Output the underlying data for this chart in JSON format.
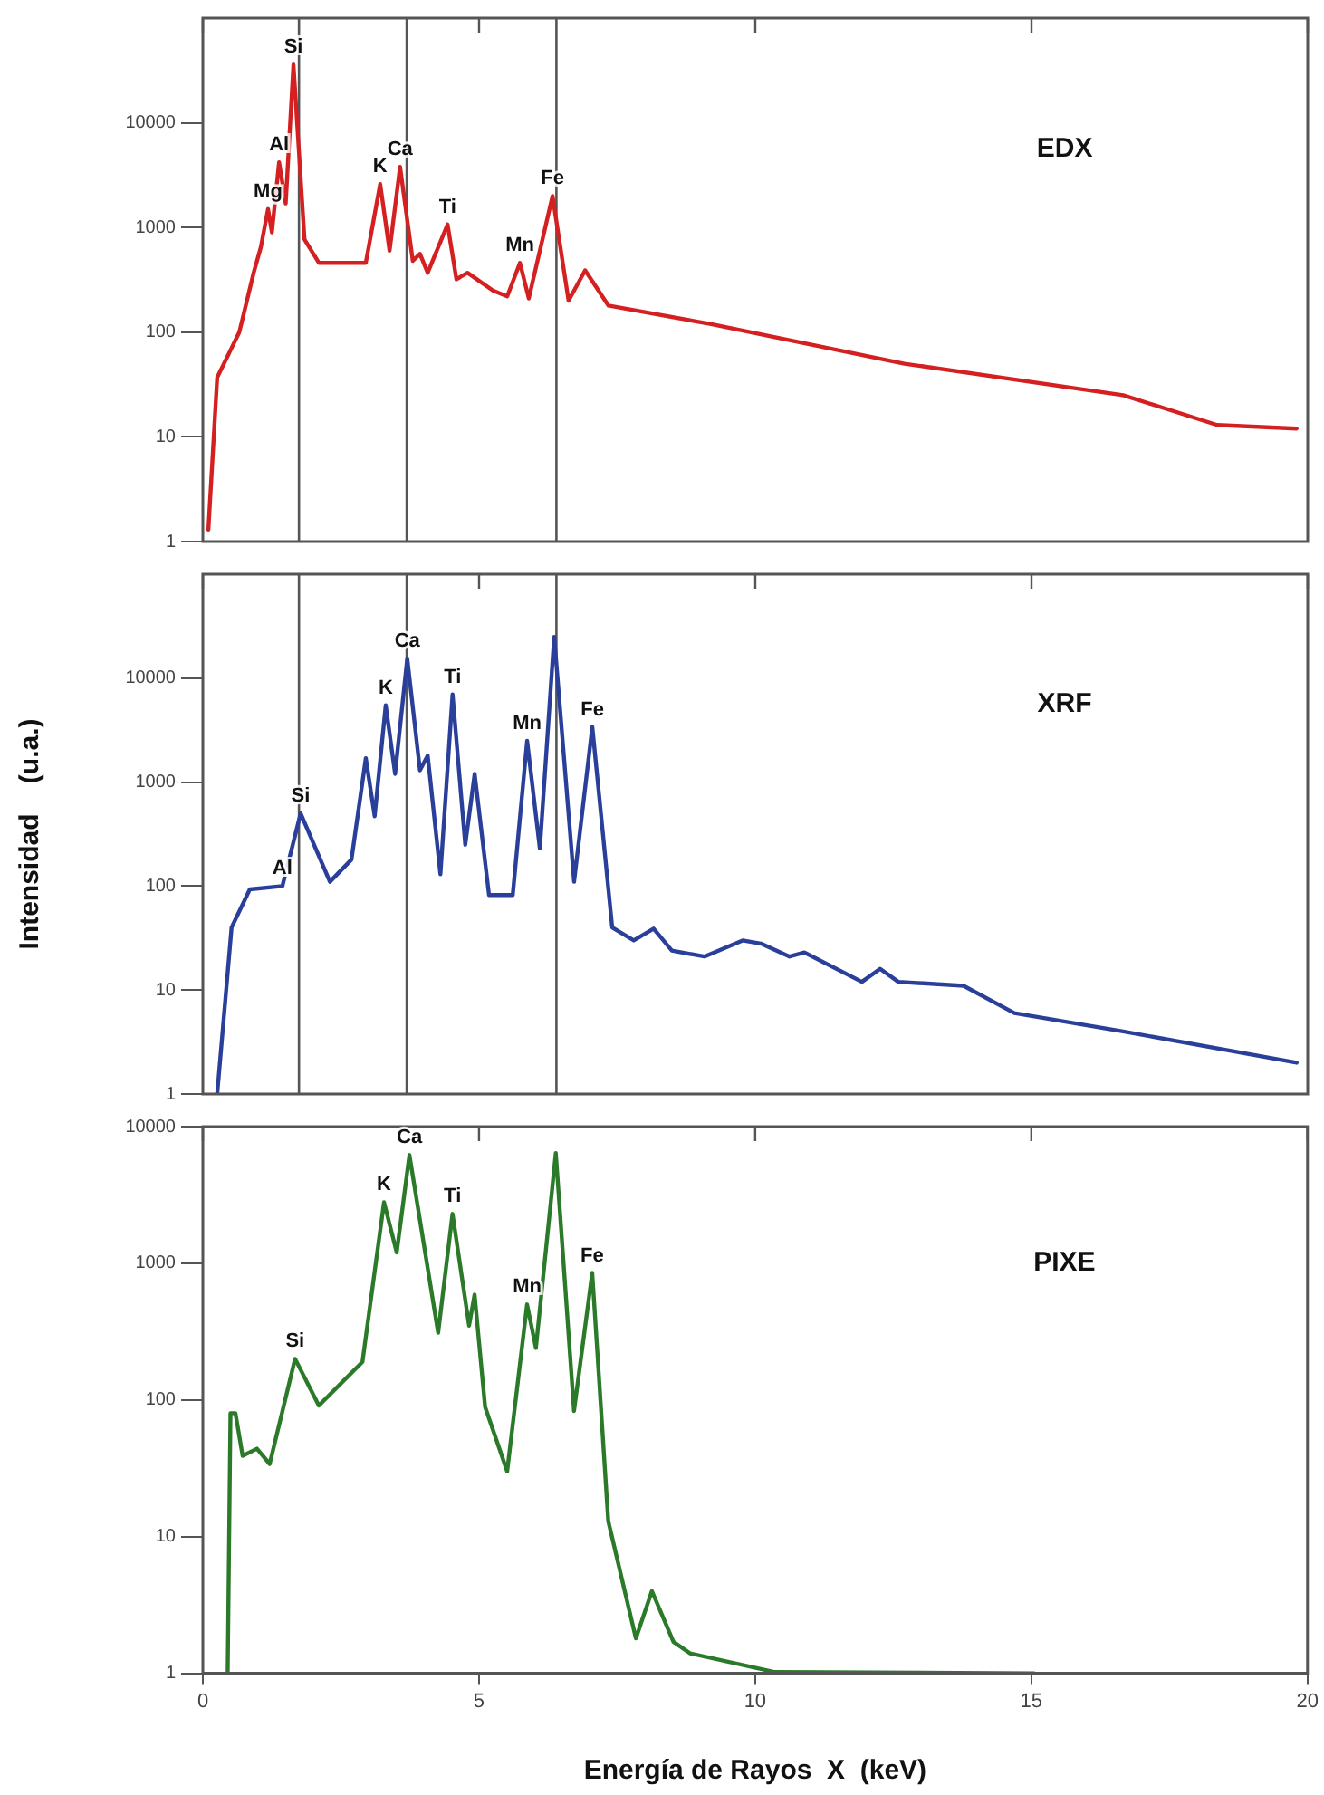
{
  "chart_data": [
    {
      "type": "line",
      "title": "EDX",
      "tick_labels": "y",
      "log": "y",
      "grid": false,
      "legend": false,
      "xlim": [
        0,
        20
      ],
      "xticks": [
        0,
        5,
        10,
        15,
        20
      ],
      "ylim": [
        1,
        100000
      ],
      "yticks": [
        1,
        10,
        100,
        1000,
        10000
      ],
      "x": [
        0.1,
        0.26,
        0.66,
        0.92,
        1.05,
        1.18,
        1.25,
        1.38,
        1.5,
        1.64,
        1.84,
        2.1,
        2.95,
        3.21,
        3.38,
        3.57,
        3.8,
        3.93,
        4.07,
        4.43,
        4.59,
        4.79,
        5.25,
        5.51,
        5.74,
        5.9,
        6.33,
        6.62,
        6.92,
        7.34,
        9.18,
        12.7,
        16.66,
        18.36,
        19.8
      ],
      "series": [
        {
          "color": "#d42020",
          "values": [
            1.3,
            37,
            100,
            370,
            650,
            1500,
            900,
            4200,
            1700,
            36000,
            770,
            460,
            460,
            2600,
            600,
            3800,
            480,
            560,
            370,
            1070,
            320,
            370,
            250,
            220,
            460,
            210,
            2000,
            200,
            390,
            180,
            120,
            50,
            25,
            13,
            12
          ]
        }
      ],
      "ref_lines": [
        {
          "axis": "x",
          "value": 1.74,
          "color": "#555555"
        },
        {
          "axis": "x",
          "value": 3.69,
          "color": "#555555"
        },
        {
          "axis": "x",
          "value": 6.4,
          "color": "#555555"
        }
      ],
      "annotations": [
        {
          "text": "Mg",
          "x": 1.18,
          "y": 1500
        },
        {
          "text": "Al",
          "x": 1.38,
          "y": 4200
        },
        {
          "text": "Si",
          "x": 1.64,
          "y": 36000
        },
        {
          "text": "K",
          "x": 3.21,
          "y": 2600
        },
        {
          "text": "Ca",
          "x": 3.57,
          "y": 3800
        },
        {
          "text": "Ti",
          "x": 4.43,
          "y": 1070
        },
        {
          "text": "Mn",
          "x": 5.74,
          "y": 460
        },
        {
          "text": "Fe",
          "x": 6.33,
          "y": 2000
        }
      ]
    },
    {
      "type": "line",
      "title": "XRF",
      "ylabel": "Intensidad    (u.a.)",
      "tick_labels": "y",
      "log": "y",
      "grid": false,
      "legend": false,
      "xlim": [
        0,
        20
      ],
      "xticks": [
        0,
        5,
        10,
        15,
        20
      ],
      "ylim": [
        1,
        100000
      ],
      "yticks": [
        1,
        10,
        100,
        1000,
        10000
      ],
      "x": [
        0.26,
        0.52,
        0.85,
        1.44,
        1.77,
        2.3,
        2.69,
        2.95,
        3.11,
        3.31,
        3.48,
        3.7,
        3.93,
        4.07,
        4.3,
        4.52,
        4.75,
        4.92,
        5.18,
        5.61,
        5.87,
        6.1,
        6.36,
        6.72,
        7.05,
        7.41,
        7.8,
        8.16,
        8.49,
        9.08,
        9.77,
        10.1,
        10.62,
        10.89,
        11.93,
        12.26,
        12.59,
        13.77,
        14.69,
        16.66,
        19.8
      ],
      "series": [
        {
          "color": "#2a3f9a",
          "values": [
            1,
            40,
            93,
            100,
            500,
            110,
            180,
            1700,
            470,
            5500,
            1200,
            15500,
            1300,
            1800,
            130,
            7000,
            250,
            1200,
            82,
            82,
            2500,
            230,
            25000,
            110,
            3400,
            40,
            30,
            39,
            24,
            21,
            30,
            28,
            21,
            23,
            12,
            16,
            12,
            11,
            6,
            4,
            2
          ]
        }
      ],
      "ref_lines": [
        {
          "axis": "x",
          "value": 1.74,
          "color": "#555555"
        },
        {
          "axis": "x",
          "value": 3.69,
          "color": "#555555"
        },
        {
          "axis": "x",
          "value": 6.4,
          "color": "#555555"
        }
      ],
      "annotations": [
        {
          "text": "Al",
          "x": 1.44,
          "y": 100
        },
        {
          "text": "Si",
          "x": 1.77,
          "y": 500
        },
        {
          "text": "K",
          "x": 3.31,
          "y": 5500
        },
        {
          "text": "Ca",
          "x": 3.7,
          "y": 15500
        },
        {
          "text": "Ti",
          "x": 4.52,
          "y": 7000
        },
        {
          "text": "Mn",
          "x": 5.87,
          "y": 2500
        },
        {
          "text": "Fe",
          "x": 7.05,
          "y": 3400
        }
      ]
    },
    {
      "type": "line",
      "title": "PIXE",
      "xlabel": "Energía de Rayos  X  (keV)",
      "log": "y",
      "grid": false,
      "legend": false,
      "xlim": [
        0,
        20
      ],
      "xticks": [
        0,
        5,
        10,
        15,
        20
      ],
      "ylim": [
        1,
        10000
      ],
      "yticks": [
        1,
        10,
        100,
        1000,
        10000
      ],
      "x": [
        0.45,
        0.5,
        0.59,
        0.72,
        0.98,
        1.21,
        1.67,
        2.1,
        2.89,
        3.28,
        3.51,
        3.74,
        4.26,
        4.52,
        4.82,
        4.92,
        5.11,
        5.51,
        5.87,
        6.03,
        6.39,
        6.72,
        7.05,
        7.34,
        7.84,
        8.13,
        8.52,
        8.82,
        10.36,
        15.05
      ],
      "series": [
        {
          "color": "#2a7a2a",
          "values": [
            1,
            80,
            80,
            39,
            44,
            34,
            200,
            91,
            190,
            2800,
            1200,
            6200,
            310,
            2300,
            350,
            590,
            89,
            30,
            500,
            240,
            6400,
            83,
            850,
            13,
            1.8,
            4,
            1.7,
            1.4,
            1.02,
            1
          ]
        }
      ],
      "annotations": [
        {
          "text": "Si",
          "x": 1.67,
          "y": 200
        },
        {
          "text": "K",
          "x": 3.28,
          "y": 2800
        },
        {
          "text": "Ca",
          "x": 3.74,
          "y": 6200
        },
        {
          "text": "Ti",
          "x": 4.52,
          "y": 2300
        },
        {
          "text": "Mn",
          "x": 5.87,
          "y": 500
        },
        {
          "text": "Fe",
          "x": 7.05,
          "y": 850
        }
      ]
    }
  ]
}
